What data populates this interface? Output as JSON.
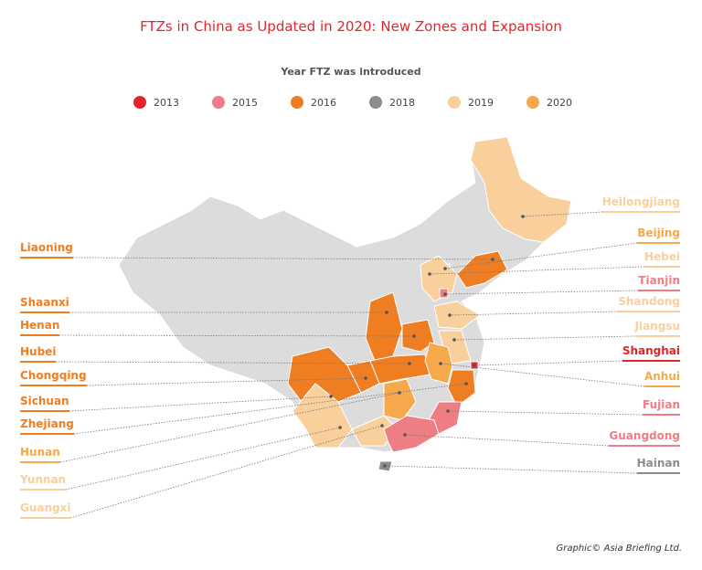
{
  "title": "FTZs in China as Updated in 2020: New Zones and Expansion",
  "legend": {
    "title": "Year FTZ was introduced",
    "items": [
      {
        "label": "2013",
        "color": "#e2242b"
      },
      {
        "label": "2015",
        "color": "#ee7d84"
      },
      {
        "label": "2016",
        "color": "#ef7d22"
      },
      {
        "label": "2018",
        "color": "#8c8c8c"
      },
      {
        "label": "2019",
        "color": "#f9cf9c"
      },
      {
        "label": "2020",
        "color": "#f5a94a"
      }
    ]
  },
  "left_labels": [
    {
      "name": "Liaoning",
      "year": "2016"
    },
    {
      "name": "Shaanxi",
      "year": "2016"
    },
    {
      "name": "Henan",
      "year": "2016"
    },
    {
      "name": "Hubei",
      "year": "2016"
    },
    {
      "name": "Chongqing",
      "year": "2016"
    },
    {
      "name": "Sichuan",
      "year": "2016"
    },
    {
      "name": "Zhejiang",
      "year": "2016"
    },
    {
      "name": "Hunan",
      "year": "2020"
    },
    {
      "name": "Yunnan",
      "year": "2019"
    },
    {
      "name": "Guangxi",
      "year": "2019"
    }
  ],
  "right_labels": [
    {
      "name": "Heilongjiang",
      "year": "2019"
    },
    {
      "name": "Beijing",
      "year": "2020"
    },
    {
      "name": "Hebei",
      "year": "2019"
    },
    {
      "name": "Tianjin",
      "year": "2015"
    },
    {
      "name": "Shandong",
      "year": "2019"
    },
    {
      "name": "Jiangsu",
      "year": "2019"
    },
    {
      "name": "Shanghai",
      "year": "2013"
    },
    {
      "name": "Anhui",
      "year": "2020"
    },
    {
      "name": "Fujian",
      "year": "2015"
    },
    {
      "name": "Guangdong",
      "year": "2015"
    },
    {
      "name": "Hainan",
      "year": "2018"
    }
  ],
  "credit": "Graphic© Asia Briefing Ltd."
}
